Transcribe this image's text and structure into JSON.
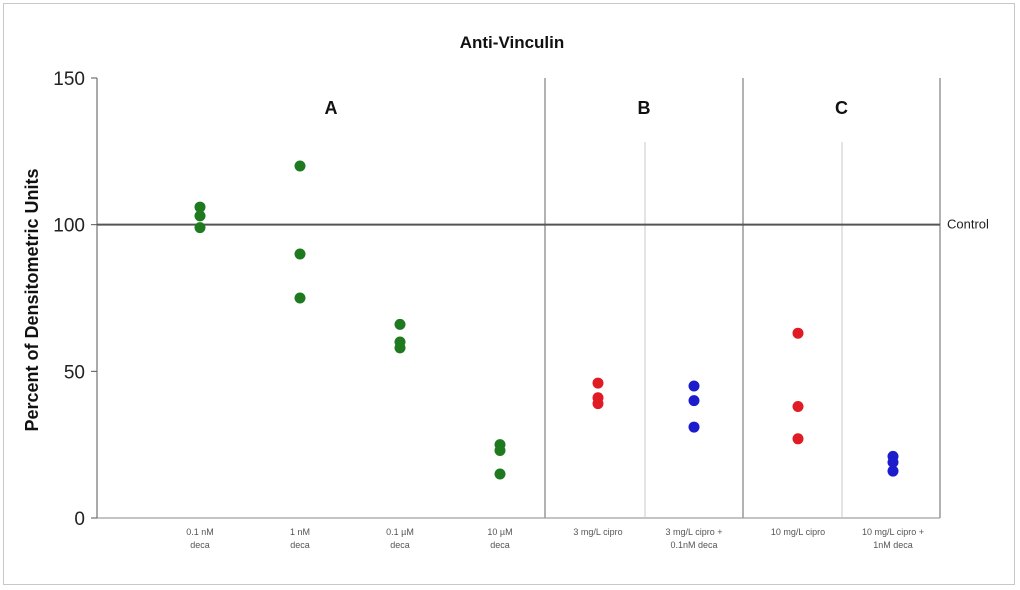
{
  "chart_data": {
    "type": "scatter",
    "title": "Anti-Vinculin",
    "ylabel": "Percent of Densitometric Units",
    "xlabel": "",
    "ylim": [
      0,
      150
    ],
    "yticks": [
      0,
      50,
      100,
      150
    ],
    "grid": false,
    "legend": "none",
    "reference_line": {
      "value": 100,
      "label": "Control"
    },
    "panels": [
      {
        "label": "A",
        "categories": [
          0,
          1,
          2,
          3
        ]
      },
      {
        "label": "B",
        "categories": [
          4,
          5
        ]
      },
      {
        "label": "C",
        "categories": [
          6,
          7
        ]
      }
    ],
    "categories": [
      [
        "0.1 nM",
        "deca"
      ],
      [
        "1 nM",
        "deca"
      ],
      [
        "0.1 µM",
        "deca"
      ],
      [
        "10 µM",
        "deca"
      ],
      [
        "3 mg/L cipro"
      ],
      [
        "3 mg/L cipro +",
        "0.1nM deca"
      ],
      [
        "10 mg/L cipro"
      ],
      [
        "10 mg/L cipro +",
        "1nM deca"
      ]
    ],
    "series": [
      {
        "category": 0,
        "color": "#1f7a1f",
        "values": [
          106,
          103,
          99
        ]
      },
      {
        "category": 1,
        "color": "#1f7a1f",
        "values": [
          120,
          90,
          75
        ]
      },
      {
        "category": 2,
        "color": "#1f7a1f",
        "values": [
          66,
          60,
          58
        ]
      },
      {
        "category": 3,
        "color": "#1f7a1f",
        "values": [
          25,
          23,
          15
        ]
      },
      {
        "category": 4,
        "color": "#e01b24",
        "values": [
          46,
          41,
          39
        ]
      },
      {
        "category": 5,
        "color": "#1c1ccc",
        "values": [
          45,
          40,
          31
        ]
      },
      {
        "category": 6,
        "color": "#e01b24",
        "values": [
          63,
          38,
          27
        ]
      },
      {
        "category": 7,
        "color": "#1c1ccc",
        "values": [
          21,
          19,
          16
        ]
      }
    ]
  }
}
